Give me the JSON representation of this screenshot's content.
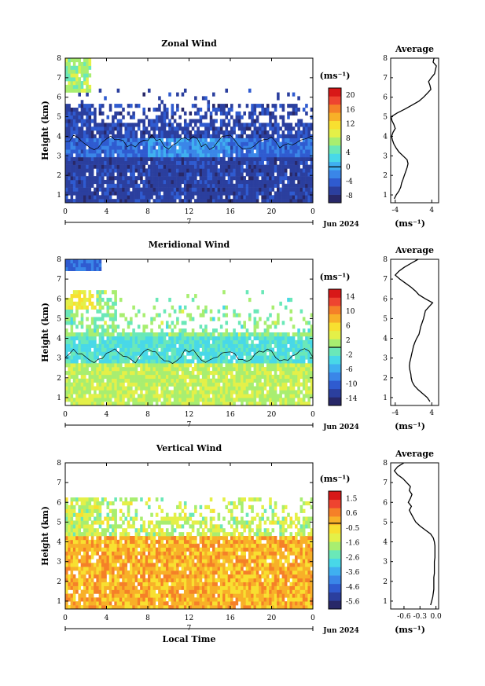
{
  "colormap": [
    "#282868",
    "#2b3f9e",
    "#2f5bd0",
    "#3a86e8",
    "#3fb0f0",
    "#48d8e8",
    "#6ae8b8",
    "#a8ee70",
    "#e4f048",
    "#f8e030",
    "#f8b028",
    "#f58028",
    "#ee4430",
    "#d81818"
  ],
  "chart_data": [
    {
      "type": "heatmap",
      "title": "Zonal Wind",
      "xlabel": "",
      "ylabel": "Height (km)",
      "xlim": [
        0,
        24
      ],
      "ylim": [
        0.6,
        8
      ],
      "x_ticks": [
        "0",
        "4",
        "8",
        "12",
        "16",
        "20",
        "0"
      ],
      "y_ticks": [
        "1",
        "2",
        "3",
        "4",
        "5",
        "6",
        "7",
        "8"
      ],
      "day_label": "7",
      "date_label": "Jun 2024",
      "colorbar": {
        "unit": "(ms⁻¹)",
        "min": -10,
        "max": 22,
        "ticks": [
          "20",
          "16",
          "12",
          "8",
          "4",
          "0",
          "-4",
          "-8"
        ]
      },
      "profile": {
        "title": "Average",
        "xlabel": "(ms⁻¹)",
        "xlim": [
          -5,
          5.5
        ],
        "x_ticks": [
          "-4",
          "4"
        ],
        "height": [
          0.8,
          1.0,
          1.2,
          1.4,
          1.6,
          1.8,
          2.0,
          2.2,
          2.4,
          2.6,
          2.8,
          3.0,
          3.2,
          3.4,
          3.6,
          3.8,
          4.0,
          4.2,
          4.4,
          4.6,
          4.8,
          5.0,
          5.2,
          5.4,
          5.6,
          5.8,
          6.0,
          6.2,
          6.4,
          6.6,
          6.8,
          7.0,
          7.2,
          7.4,
          7.6,
          7.8,
          8.0
        ],
        "value": [
          -4.2,
          -3.8,
          -3.2,
          -2.8,
          -2.6,
          -2.3,
          -2.0,
          -1.7,
          -1.4,
          -1.2,
          -1.4,
          -2.3,
          -3.2,
          -3.8,
          -4.3,
          -4.6,
          -4.8,
          -4.5,
          -4.0,
          -4.3,
          -4.7,
          -4.9,
          -3.5,
          -1.8,
          -0.3,
          1.2,
          2.2,
          3.0,
          3.8,
          3.6,
          3.3,
          3.9,
          4.6,
          4.8,
          5.0,
          4.3,
          4.5
        ]
      }
    },
    {
      "type": "heatmap",
      "title": "Meridional Wind",
      "xlabel": "",
      "ylabel": "Height (km)",
      "xlim": [
        0,
        24
      ],
      "ylim": [
        0.6,
        8
      ],
      "x_ticks": [
        "0",
        "4",
        "8",
        "12",
        "16",
        "20",
        "0"
      ],
      "y_ticks": [
        "1",
        "2",
        "3",
        "4",
        "5",
        "6",
        "7",
        "8"
      ],
      "day_label": "7",
      "date_label": "Jun 2024",
      "colorbar": {
        "unit": "(ms⁻¹)",
        "min": -16,
        "max": 16,
        "ticks": [
          "14",
          "10",
          "6",
          "2",
          "-2",
          "-6",
          "-10",
          "-14"
        ]
      },
      "profile": {
        "title": "Average",
        "xlabel": "(ms⁻¹)",
        "xlim": [
          -5,
          5.5
        ],
        "x_ticks": [
          "-4",
          "4"
        ],
        "height": [
          0.8,
          1.0,
          1.2,
          1.4,
          1.6,
          1.8,
          2.0,
          2.2,
          2.4,
          2.6,
          2.8,
          3.0,
          3.2,
          3.4,
          3.6,
          3.8,
          4.0,
          4.2,
          4.4,
          4.6,
          4.8,
          5.0,
          5.2,
          5.4,
          5.6,
          5.8,
          6.0,
          6.2,
          6.4,
          6.6,
          6.8,
          7.0,
          7.2,
          7.4,
          7.6,
          7.8,
          8.0
        ],
        "value": [
          3.6,
          3.0,
          2.0,
          1.0,
          0.2,
          -0.3,
          -0.5,
          -0.6,
          -0.8,
          -0.9,
          -0.8,
          -0.6,
          -0.4,
          -0.2,
          0.0,
          0.3,
          0.7,
          1.2,
          1.4,
          1.6,
          1.9,
          2.2,
          2.4,
          2.6,
          3.4,
          4.2,
          2.6,
          1.2,
          0.4,
          -0.6,
          -1.8,
          -3.0,
          -4.0,
          -3.2,
          -2.0,
          -0.5,
          1.0
        ]
      }
    },
    {
      "type": "heatmap",
      "title": "Vertical Wind",
      "xlabel": "Local Time",
      "ylabel": "Height (km)",
      "xlim": [
        0,
        24
      ],
      "ylim": [
        0.6,
        8
      ],
      "x_ticks": [
        "0",
        "4",
        "8",
        "12",
        "16",
        "20",
        "0"
      ],
      "y_ticks": [
        "1",
        "2",
        "3",
        "4",
        "5",
        "6",
        "7",
        "8"
      ],
      "day_label": "7",
      "date_label": "Jun 2024",
      "colorbar": {
        "unit": "(ms⁻¹)",
        "min": -6.4,
        "max": 2.4,
        "ticks": [
          "1.5",
          "0.6",
          "-0.5",
          "-1.6",
          "-2.6",
          "-3.6",
          "-4.6",
          "-5.6"
        ]
      },
      "profile": {
        "title": "Average",
        "xlabel": "(ms⁻¹)",
        "xlim": [
          -0.85,
          0.05
        ],
        "x_ticks": [
          "-0.6",
          "-0.3",
          "0.0"
        ],
        "height": [
          0.8,
          1.0,
          1.2,
          1.4,
          1.6,
          1.8,
          2.0,
          2.2,
          2.4,
          2.6,
          2.8,
          3.0,
          3.2,
          3.4,
          3.6,
          3.8,
          4.0,
          4.2,
          4.4,
          4.6,
          4.8,
          5.0,
          5.2,
          5.4,
          5.6,
          5.8,
          6.0,
          6.2,
          6.4,
          6.6,
          6.8,
          7.0,
          7.2,
          7.4,
          7.6,
          7.8,
          8.0
        ],
        "value": [
          -0.1,
          -0.08,
          -0.06,
          -0.05,
          -0.04,
          -0.04,
          -0.04,
          -0.04,
          -0.03,
          -0.03,
          -0.03,
          -0.03,
          -0.02,
          -0.02,
          -0.02,
          -0.02,
          -0.03,
          -0.05,
          -0.1,
          -0.2,
          -0.3,
          -0.38,
          -0.42,
          -0.46,
          -0.5,
          -0.46,
          -0.52,
          -0.48,
          -0.45,
          -0.5,
          -0.48,
          -0.55,
          -0.62,
          -0.72,
          -0.78,
          -0.72,
          -0.6
        ]
      }
    }
  ]
}
